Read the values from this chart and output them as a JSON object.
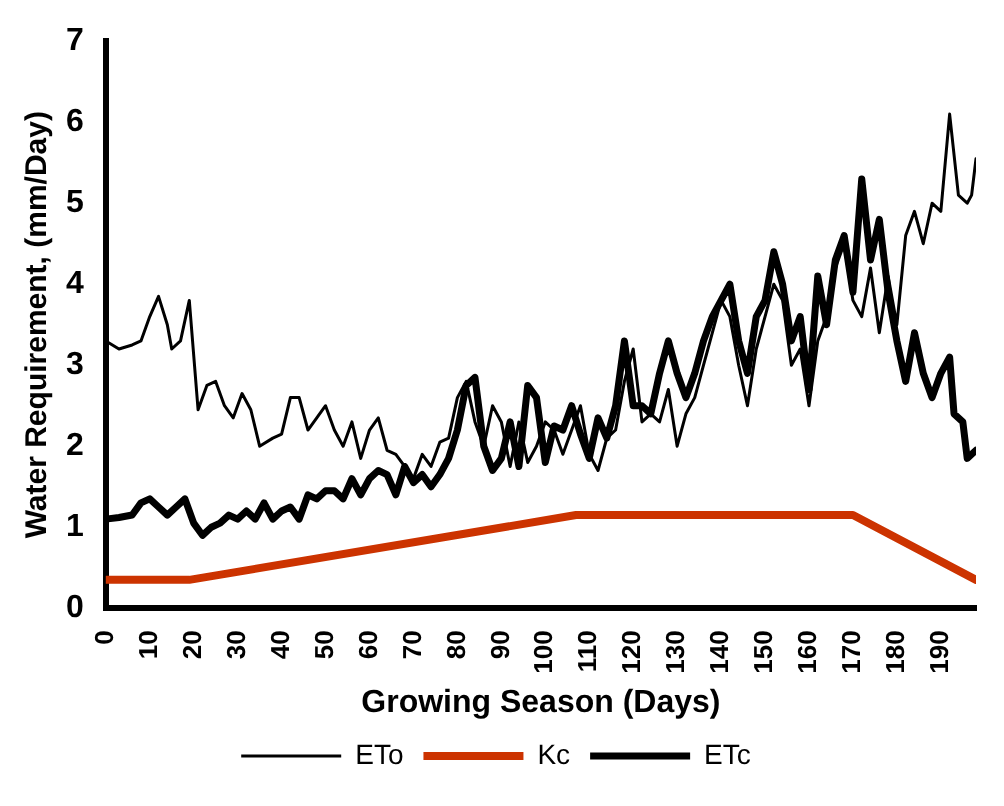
{
  "chart_data": {
    "type": "line",
    "xlabel": "Growing Season (Days)",
    "ylabel": "Water Requirement, (mm/Day)",
    "xlim": [
      0,
      198
    ],
    "xticks": [
      0,
      10,
      20,
      30,
      40,
      50,
      60,
      70,
      80,
      90,
      100,
      110,
      120,
      130,
      140,
      150,
      160,
      170,
      180,
      190
    ],
    "ylim": [
      0,
      7
    ],
    "yticks": [
      0,
      1,
      2,
      3,
      4,
      5,
      6,
      7
    ],
    "grid": false,
    "legend": "bottom",
    "marker": "none",
    "line_style": "solid",
    "series": [
      {
        "name": "ETo",
        "color": "#000000",
        "x": [
          0,
          3,
          6,
          8,
          10,
          12,
          14,
          15,
          17,
          19,
          21,
          23,
          25,
          27,
          29,
          31,
          33,
          35,
          38,
          40,
          42,
          44,
          46,
          48,
          50,
          52,
          54,
          56,
          58,
          60,
          62,
          64,
          66,
          68,
          70,
          72,
          74,
          76,
          78,
          80,
          82,
          84,
          86,
          88,
          90,
          92,
          94,
          96,
          98,
          100,
          102,
          104,
          106,
          108,
          110,
          112,
          114,
          116,
          118,
          120,
          122,
          124,
          126,
          128,
          130,
          132,
          134,
          136,
          138,
          140,
          142,
          144,
          146,
          148,
          150,
          152,
          154,
          156,
          158,
          160,
          162,
          164,
          166,
          168,
          170,
          172,
          174,
          176,
          178,
          180,
          182,
          184,
          186,
          188,
          190,
          192,
          194,
          196,
          197,
          198
        ],
        "values": [
          3.3,
          3.2,
          3.25,
          3.3,
          3.6,
          3.85,
          3.5,
          3.2,
          3.3,
          3.8,
          2.45,
          2.75,
          2.8,
          2.5,
          2.35,
          2.65,
          2.45,
          2.0,
          2.1,
          2.15,
          2.6,
          2.6,
          2.2,
          2.35,
          2.5,
          2.2,
          2.0,
          2.3,
          1.85,
          2.2,
          2.35,
          1.95,
          1.9,
          1.75,
          1.6,
          1.9,
          1.75,
          2.05,
          2.1,
          2.6,
          2.8,
          2.3,
          2.0,
          2.5,
          2.3,
          1.75,
          2.3,
          1.8,
          2.0,
          2.3,
          2.2,
          1.9,
          2.2,
          2.5,
          1.9,
          1.7,
          2.1,
          2.2,
          2.8,
          3.2,
          2.3,
          2.4,
          2.3,
          2.7,
          2.0,
          2.4,
          2.6,
          3.0,
          3.4,
          3.8,
          3.6,
          3.0,
          2.5,
          3.2,
          3.6,
          4.0,
          3.8,
          3.0,
          3.2,
          2.5,
          3.3,
          3.6,
          4.2,
          4.5,
          3.8,
          3.6,
          4.2,
          3.4,
          4.1,
          3.5,
          4.6,
          4.9,
          4.5,
          5.0,
          4.9,
          6.1,
          5.1,
          5.0,
          5.1,
          5.55
        ]
      },
      {
        "name": "Kc",
        "color": "#cc3300",
        "x": [
          0,
          19,
          107,
          170,
          198
        ],
        "values": [
          0.35,
          0.35,
          1.15,
          1.15,
          0.35
        ]
      },
      {
        "name": "ETc",
        "color": "#000000",
        "x": [
          0,
          3,
          6,
          8,
          10,
          12,
          14,
          16,
          18,
          20,
          22,
          24,
          26,
          28,
          30,
          32,
          34,
          36,
          38,
          40,
          42,
          44,
          46,
          48,
          50,
          52,
          54,
          56,
          58,
          60,
          62,
          64,
          66,
          68,
          70,
          72,
          74,
          76,
          78,
          80,
          82,
          84,
          86,
          88,
          90,
          92,
          94,
          96,
          98,
          100,
          102,
          104,
          106,
          108,
          110,
          112,
          114,
          116,
          118,
          120,
          122,
          124,
          126,
          128,
          130,
          132,
          134,
          136,
          138,
          140,
          142,
          144,
          146,
          148,
          150,
          152,
          154,
          156,
          158,
          160,
          162,
          164,
          166,
          168,
          170,
          172,
          174,
          176,
          178,
          180,
          182,
          184,
          186,
          188,
          190,
          192,
          193,
          195,
          196,
          198
        ],
        "values": [
          1.1,
          1.12,
          1.15,
          1.3,
          1.35,
          1.25,
          1.15,
          1.25,
          1.35,
          1.05,
          0.9,
          1.0,
          1.05,
          1.15,
          1.1,
          1.2,
          1.1,
          1.3,
          1.1,
          1.2,
          1.25,
          1.1,
          1.4,
          1.35,
          1.45,
          1.45,
          1.35,
          1.6,
          1.4,
          1.6,
          1.7,
          1.65,
          1.4,
          1.75,
          1.55,
          1.65,
          1.5,
          1.65,
          1.85,
          2.2,
          2.75,
          2.85,
          2.0,
          1.7,
          1.85,
          2.3,
          1.75,
          2.75,
          2.6,
          1.8,
          2.25,
          2.2,
          2.5,
          2.15,
          1.85,
          2.35,
          2.1,
          2.5,
          3.3,
          2.5,
          2.5,
          2.4,
          2.9,
          3.3,
          2.9,
          2.6,
          2.9,
          3.3,
          3.6,
          3.8,
          4.0,
          3.3,
          2.9,
          3.6,
          3.8,
          4.4,
          4.0,
          3.3,
          3.6,
          2.7,
          4.1,
          3.5,
          4.3,
          4.6,
          3.9,
          5.3,
          4.3,
          4.8,
          3.9,
          3.3,
          2.8,
          3.4,
          2.9,
          2.6,
          2.9,
          3.1,
          2.4,
          2.3,
          1.85,
          1.95
        ]
      }
    ]
  }
}
